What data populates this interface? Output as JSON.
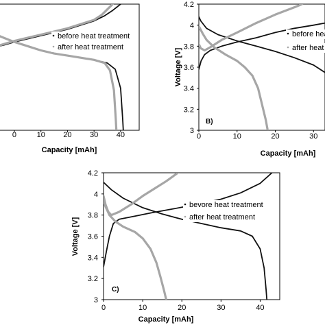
{
  "colors": {
    "before": "#111111",
    "after": "#a6a6a6",
    "axis": "#000000",
    "frame": "#000000",
    "background": "#ffffff"
  },
  "chart_data": [
    {
      "type": "line",
      "panel_label": "",
      "xlabel": "Capacity [mAh]",
      "ylabel": "",
      "xlim": [
        -8,
        47
      ],
      "ylim": [
        3.0,
        4.2
      ],
      "x_ticks": [
        "0",
        "10",
        "20",
        "30",
        "40"
      ],
      "y_ticks": [],
      "grid": false,
      "legend": "right",
      "series": [
        {
          "name": "before heat treatment",
          "color_key": "before",
          "charge": [
            [
              -8,
              3.79
            ],
            [
              -4,
              3.81
            ],
            [
              0,
              3.84
            ],
            [
              5,
              3.87
            ],
            [
              10,
              3.9
            ],
            [
              15,
              3.93
            ],
            [
              20,
              3.96
            ],
            [
              25,
              4.0
            ],
            [
              30,
              4.04
            ],
            [
              34,
              4.09
            ],
            [
              37,
              4.14
            ],
            [
              40,
              4.2
            ]
          ],
          "discharge": [
            [
              -8,
              3.91
            ],
            [
              -4,
              3.88
            ],
            [
              0,
              3.84
            ],
            [
              5,
              3.8
            ],
            [
              10,
              3.76
            ],
            [
              15,
              3.73
            ],
            [
              20,
              3.71
            ],
            [
              25,
              3.69
            ],
            [
              30,
              3.67
            ],
            [
              35,
              3.64
            ],
            [
              38,
              3.58
            ],
            [
              40,
              3.4
            ],
            [
              40.8,
              3.1
            ],
            [
              41,
              3.0
            ]
          ]
        },
        {
          "name": "after heat treatment",
          "color_key": "after",
          "charge": [
            [
              -8,
              3.79
            ],
            [
              -4,
              3.82
            ],
            [
              0,
              3.85
            ],
            [
              5,
              3.88
            ],
            [
              10,
              3.91
            ],
            [
              15,
              3.94
            ],
            [
              20,
              3.97
            ],
            [
              25,
              4.01
            ],
            [
              30,
              4.05
            ],
            [
              33,
              4.1
            ],
            [
              35,
              4.15
            ],
            [
              37,
              4.2
            ]
          ],
          "discharge": [
            [
              -8,
              3.92
            ],
            [
              -4,
              3.88
            ],
            [
              0,
              3.84
            ],
            [
              5,
              3.8
            ],
            [
              10,
              3.76
            ],
            [
              15,
              3.73
            ],
            [
              20,
              3.71
            ],
            [
              25,
              3.69
            ],
            [
              30,
              3.67
            ],
            [
              34,
              3.64
            ],
            [
              36,
              3.57
            ],
            [
              37.5,
              3.38
            ],
            [
              38.2,
              3.1
            ],
            [
              38.4,
              3.0
            ]
          ]
        }
      ]
    },
    {
      "type": "line",
      "panel_label": "B)",
      "xlabel": "Capacity [mAh]",
      "ylabel": "Voltage [V]",
      "xlim": [
        0,
        33
      ],
      "ylim": [
        3.0,
        4.2
      ],
      "x_ticks": [
        "0",
        "10",
        "20",
        "30"
      ],
      "y_ticks": [
        "3",
        "3.2",
        "3.4",
        "3.6",
        "3.8",
        "4",
        "4.2"
      ],
      "grid": false,
      "legend": "right",
      "series": [
        {
          "name": "before heat treatment",
          "color_key": "before",
          "charge": [
            [
              0,
              3.58
            ],
            [
              0.6,
              3.66
            ],
            [
              1.5,
              3.72
            ],
            [
              3,
              3.76
            ],
            [
              6,
              3.8
            ],
            [
              10,
              3.84
            ],
            [
              15,
              3.88
            ],
            [
              20,
              3.93
            ],
            [
              25,
              3.97
            ],
            [
              30,
              4.0
            ],
            [
              33,
              4.02
            ]
          ],
          "discharge": [
            [
              0,
              4.08
            ],
            [
              0.5,
              4.04
            ],
            [
              2,
              3.97
            ],
            [
              5,
              3.91
            ],
            [
              10,
              3.85
            ],
            [
              15,
              3.8
            ],
            [
              20,
              3.75
            ],
            [
              25,
              3.69
            ],
            [
              30,
              3.62
            ],
            [
              33,
              3.55
            ]
          ]
        },
        {
          "name": "after heat treatment",
          "color_key": "after",
          "charge": [
            [
              0,
              3.82
            ],
            [
              0.5,
              3.78
            ],
            [
              1.5,
              3.76
            ],
            [
              3,
              3.79
            ],
            [
              6,
              3.86
            ],
            [
              10,
              3.93
            ],
            [
              15,
              4.02
            ],
            [
              20,
              4.1
            ],
            [
              25,
              4.17
            ],
            [
              27,
              4.2
            ]
          ],
          "discharge": [
            [
              0,
              3.99
            ],
            [
              1,
              3.92
            ],
            [
              2,
              3.86
            ],
            [
              4,
              3.79
            ],
            [
              7,
              3.72
            ],
            [
              10,
              3.66
            ],
            [
              12,
              3.6
            ],
            [
              14,
              3.52
            ],
            [
              15.5,
              3.4
            ],
            [
              16.5,
              3.25
            ],
            [
              17.5,
              3.1
            ],
            [
              18,
              3.0
            ]
          ]
        }
      ]
    },
    {
      "type": "line",
      "panel_label": "C)",
      "xlabel": "Capacity [mAh]",
      "ylabel": "Voltage [V]",
      "xlim": [
        0,
        45
      ],
      "ylim": [
        3.0,
        4.2
      ],
      "x_ticks": [
        "0",
        "10",
        "20",
        "30",
        "40"
      ],
      "y_ticks": [
        "3",
        "3.2",
        "3.4",
        "3.6",
        "3.8",
        "4",
        "4.2"
      ],
      "grid": false,
      "legend": "right",
      "series": [
        {
          "name": "bevore heat treatment",
          "color_key": "before",
          "charge": [
            [
              0,
              3.31
            ],
            [
              0.7,
              3.45
            ],
            [
              1.5,
              3.6
            ],
            [
              2.5,
              3.72
            ],
            [
              4,
              3.76
            ],
            [
              8,
              3.79
            ],
            [
              12,
              3.82
            ],
            [
              18,
              3.86
            ],
            [
              25,
              3.91
            ],
            [
              30,
              3.95
            ],
            [
              35,
              4.01
            ],
            [
              40,
              4.1
            ],
            [
              43,
              4.2
            ]
          ],
          "discharge": [
            [
              0,
              4.11
            ],
            [
              2,
              4.04
            ],
            [
              5,
              3.96
            ],
            [
              10,
              3.87
            ],
            [
              15,
              3.81
            ],
            [
              20,
              3.76
            ],
            [
              25,
              3.72
            ],
            [
              30,
              3.68
            ],
            [
              35,
              3.65
            ],
            [
              38,
              3.6
            ],
            [
              40,
              3.48
            ],
            [
              41,
              3.3
            ],
            [
              41.5,
              3.1
            ],
            [
              41.7,
              3.0
            ]
          ]
        },
        {
          "name": "after heat treatment",
          "color_key": "after",
          "charge": [
            [
              0,
              3.98
            ],
            [
              0.5,
              3.9
            ],
            [
              1.2,
              3.83
            ],
            [
              2,
              3.8
            ],
            [
              4,
              3.83
            ],
            [
              7,
              3.9
            ],
            [
              10,
              3.98
            ],
            [
              13,
              4.05
            ],
            [
              16,
              4.12
            ],
            [
              19,
              4.2
            ]
          ],
          "discharge": [
            [
              0,
              3.94
            ],
            [
              0.5,
              3.88
            ],
            [
              1.5,
              3.8
            ],
            [
              3,
              3.74
            ],
            [
              5,
              3.69
            ],
            [
              8,
              3.64
            ],
            [
              10,
              3.58
            ],
            [
              12,
              3.48
            ],
            [
              13.5,
              3.35
            ],
            [
              14.5,
              3.22
            ],
            [
              15.5,
              3.08
            ],
            [
              16,
              3.0
            ]
          ]
        }
      ]
    }
  ]
}
